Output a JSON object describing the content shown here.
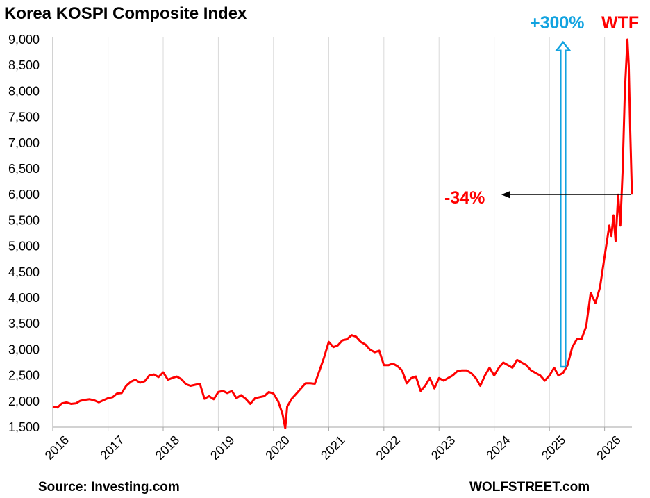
{
  "chart_data": {
    "type": "line",
    "title": "Korea KOSPI Composite Index",
    "xlabel": "",
    "ylabel": "",
    "ylim": [
      1500,
      9000
    ],
    "xlim": [
      "2016-01-01",
      "2026-07-01"
    ],
    "y_ticks": [
      "1,500",
      "2,000",
      "2,500",
      "3,000",
      "3,500",
      "4,000",
      "4,500",
      "5,000",
      "5,500",
      "6,000",
      "6,500",
      "7,000",
      "7,500",
      "8,000",
      "8,500",
      "9,000"
    ],
    "x_ticks": [
      "2016",
      "2017",
      "2018",
      "2019",
      "2020",
      "2021",
      "2022",
      "2023",
      "2024",
      "2025",
      "2026"
    ],
    "grid": "vertical",
    "colors": {
      "line": "#ff0000",
      "arrow_up": "#12a3e0",
      "arrow_left": "#000000"
    },
    "series": [
      {
        "x": [
          "2016-01-01",
          "2016-02-01",
          "2016-03-01",
          "2016-04-01",
          "2016-05-01",
          "2016-06-01",
          "2016-07-01",
          "2016-08-01",
          "2016-09-01",
          "2016-10-01",
          "2016-11-01",
          "2016-12-01",
          "2017-01-01",
          "2017-02-01",
          "2017-03-01",
          "2017-04-01",
          "2017-05-01",
          "2017-06-01",
          "2017-07-01",
          "2017-08-01",
          "2017-09-01",
          "2017-10-01",
          "2017-11-01",
          "2017-12-01",
          "2018-01-01",
          "2018-02-01",
          "2018-03-01",
          "2018-04-01",
          "2018-05-01",
          "2018-06-01",
          "2018-07-01",
          "2018-08-01",
          "2018-09-01",
          "2018-10-01",
          "2018-11-01",
          "2018-12-01",
          "2019-01-01",
          "2019-02-01",
          "2019-03-01",
          "2019-04-01",
          "2019-05-01",
          "2019-06-01",
          "2019-07-01",
          "2019-08-01",
          "2019-09-01",
          "2019-10-01",
          "2019-11-01",
          "2019-12-01",
          "2020-01-01",
          "2020-02-01",
          "2020-03-01",
          "2020-03-19",
          "2020-04-01",
          "2020-05-01",
          "2020-06-01",
          "2020-07-01",
          "2020-08-01",
          "2020-09-01",
          "2020-10-01",
          "2020-11-01",
          "2020-12-01",
          "2021-01-01",
          "2021-02-01",
          "2021-03-01",
          "2021-04-01",
          "2021-05-01",
          "2021-06-01",
          "2021-07-01",
          "2021-08-01",
          "2021-09-01",
          "2021-10-01",
          "2021-11-01",
          "2021-12-01",
          "2022-01-01",
          "2022-02-01",
          "2022-03-01",
          "2022-04-01",
          "2022-05-01",
          "2022-06-01",
          "2022-07-01",
          "2022-08-01",
          "2022-09-01",
          "2022-10-01",
          "2022-11-01",
          "2022-12-01",
          "2023-01-01",
          "2023-02-01",
          "2023-03-01",
          "2023-04-01",
          "2023-05-01",
          "2023-06-01",
          "2023-07-01",
          "2023-08-01",
          "2023-09-01",
          "2023-10-01",
          "2023-11-01",
          "2023-12-01",
          "2024-01-01",
          "2024-02-01",
          "2024-03-01",
          "2024-04-01",
          "2024-05-01",
          "2024-06-01",
          "2024-07-01",
          "2024-08-01",
          "2024-09-01",
          "2024-10-01",
          "2024-11-01",
          "2024-12-01",
          "2025-01-01",
          "2025-02-01",
          "2025-03-01",
          "2025-04-01",
          "2025-05-01",
          "2025-06-01",
          "2025-07-01",
          "2025-08-01",
          "2025-09-01",
          "2025-10-01",
          "2025-11-01",
          "2025-12-01",
          "2026-01-01",
          "2026-02-01",
          "2026-02-15",
          "2026-03-01",
          "2026-03-15",
          "2026-04-01",
          "2026-04-15",
          "2026-05-01",
          "2026-05-15",
          "2026-06-01",
          "2026-06-10",
          "2026-06-20",
          "2026-07-01"
        ],
        "values": [
          1900,
          1880,
          1960,
          1980,
          1950,
          1960,
          2010,
          2030,
          2040,
          2020,
          1980,
          2020,
          2060,
          2080,
          2150,
          2160,
          2300,
          2380,
          2420,
          2360,
          2390,
          2500,
          2520,
          2470,
          2560,
          2420,
          2450,
          2480,
          2430,
          2330,
          2300,
          2320,
          2340,
          2050,
          2100,
          2040,
          2180,
          2200,
          2160,
          2200,
          2060,
          2120,
          2050,
          1950,
          2060,
          2080,
          2100,
          2180,
          2150,
          2000,
          1750,
          1480,
          1900,
          2050,
          2150,
          2250,
          2350,
          2350,
          2340,
          2600,
          2850,
          3150,
          3050,
          3080,
          3180,
          3200,
          3280,
          3250,
          3150,
          3100,
          3000,
          2950,
          2980,
          2700,
          2700,
          2730,
          2680,
          2600,
          2350,
          2450,
          2480,
          2200,
          2300,
          2450,
          2250,
          2450,
          2400,
          2450,
          2500,
          2580,
          2600,
          2600,
          2550,
          2450,
          2300,
          2500,
          2650,
          2500,
          2650,
          2750,
          2700,
          2650,
          2800,
          2750,
          2700,
          2600,
          2550,
          2500,
          2400,
          2500,
          2650,
          2500,
          2550,
          2700,
          3050,
          3200,
          3200,
          3450,
          4100,
          3900,
          4200,
          4800,
          5400,
          5200,
          5600,
          5100,
          6000,
          5400,
          6500,
          8000,
          9000,
          8500,
          7200,
          6000
        ]
      }
    ]
  },
  "annotations": {
    "up_label": "+300%",
    "top_label": "WTF",
    "drop_label": "-34%"
  },
  "footer": {
    "source": "Source: Investing.com",
    "brand": "WOLFSTREET.com"
  }
}
